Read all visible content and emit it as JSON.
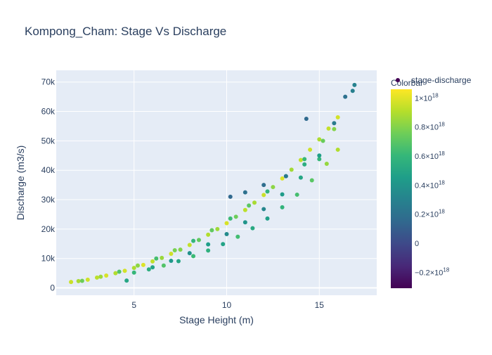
{
  "chart_data": {
    "type": "scatter",
    "title": "Kompong_Cham: Stage Vs Discharge",
    "xlabel": "Stage Height (m)",
    "ylabel": "Discharge (m3/s)",
    "xlim": [
      0.8,
      18.1
    ],
    "ylim": [
      -2500,
      74000
    ],
    "x_ticks": [
      5,
      10,
      15
    ],
    "x_tick_labels": [
      "5",
      "10",
      "15"
    ],
    "y_ticks": [
      0,
      10000,
      20000,
      30000,
      40000,
      50000,
      60000,
      70000
    ],
    "y_tick_labels": [
      "0",
      "10k",
      "20k",
      "30k",
      "40k",
      "50k",
      "60k",
      "70k"
    ],
    "grid": true,
    "legend": {
      "label": "stage-discharge",
      "placement": "top-right"
    },
    "colorscale": "Viridis",
    "colorbar": {
      "title": "Colorbar",
      "range": [
        -3.1e+17,
        1.06e+18
      ],
      "ticks": [
        -2e+17,
        0,
        2e+17,
        4e+17,
        6e+17,
        8e+17,
        1e+18
      ],
      "tick_labels": [
        {
          "mant": "−0.2×10",
          "exp": "18"
        },
        {
          "mant": "0",
          "exp": ""
        },
        {
          "mant": "0.2×10",
          "exp": "18"
        },
        {
          "mant": "0.4×10",
          "exp": "18"
        },
        {
          "mant": "0.6×10",
          "exp": "18"
        },
        {
          "mant": "0.8×10",
          "exp": "18"
        },
        {
          "mant": "1×10",
          "exp": "18"
        }
      ]
    },
    "series": [
      {
        "x": [
          1.6,
          2.0,
          2.5,
          3.0,
          3.5,
          4.0,
          4.5,
          5.0,
          5.5,
          6.0,
          6.5,
          7.0,
          7.5,
          8.0,
          8.5,
          9.0,
          9.5,
          10.0,
          10.5,
          11.0,
          11.5,
          12.0,
          12.5,
          13.0,
          13.5,
          14.0,
          14.5,
          15.0,
          15.5,
          16.0,
          2.2,
          3.2,
          4.2,
          5.2,
          6.2,
          7.2,
          8.2,
          9.2,
          10.2,
          11.2,
          12.2,
          13.2,
          14.2,
          15.2,
          15.8,
          5.0,
          5.8,
          6.6,
          7.4,
          8.2,
          9.0,
          9.8,
          10.6,
          11.4,
          12.2,
          13.0,
          13.8,
          14.6,
          15.4,
          16.0,
          6.0,
          7.0,
          8.0,
          9.0,
          10.0,
          11.0,
          12.0,
          13.0,
          14.0,
          15.0,
          4.6,
          10.2,
          11.0,
          12.0,
          13.2,
          14.2,
          15.0,
          15.8,
          16.4,
          16.8,
          16.9,
          14.3
        ],
        "y": [
          2000,
          2300,
          2800,
          3500,
          4200,
          5000,
          5800,
          6800,
          7800,
          9000,
          10200,
          11600,
          13000,
          14600,
          16300,
          18100,
          20000,
          22000,
          24200,
          26500,
          29000,
          31600,
          34300,
          37200,
          40200,
          43500,
          47000,
          50500,
          54200,
          58000,
          2400,
          3800,
          5500,
          7600,
          10000,
          12800,
          16000,
          19600,
          23600,
          28000,
          32800,
          38000,
          43800,
          50000,
          54000,
          5200,
          6300,
          7600,
          9100,
          10800,
          12700,
          14900,
          17400,
          20300,
          23600,
          27400,
          31700,
          36600,
          42200,
          47000,
          7000,
          9200,
          11800,
          14800,
          18300,
          22300,
          26800,
          31800,
          37500,
          43800,
          2500,
          31000,
          32500,
          35000,
          38000,
          42000,
          45000,
          56000,
          65000,
          67000,
          69000,
          57500
        ],
        "c": [
          9.5e+17,
          8.8e+17,
          9.6e+17,
          9.2e+17,
          9.8e+17,
          9e+17,
          9.7e+17,
          8.9e+17,
          9.9e+17,
          9.3e+17,
          8.5e+17,
          9.6e+17,
          8e+17,
          9.4e+17,
          7.2e+17,
          9e+17,
          8.6e+17,
          9.8e+17,
          7.5e+17,
          9.2e+17,
          8.8e+17,
          9.5e+17,
          8.2e+17,
          9.9e+17,
          8.7e+17,
          9.3e+17,
          9.6e+17,
          8.9e+17,
          9.4e+17,
          9.7e+17,
          7.5e+17,
          8.6e+17,
          6.8e+17,
          8.2e+17,
          6.5e+17,
          7.8e+17,
          6e+17,
          7.2e+17,
          6.2e+17,
          7e+17,
          5.8e+17,
          6.6e+17,
          6.1e+17,
          7.4e+17,
          8e+17,
          6e+17,
          5.5e+17,
          6.8e+17,
          5e+17,
          6.2e+17,
          5.6e+17,
          4.8e+17,
          6.4e+17,
          5.2e+17,
          4.6e+17,
          5.8e+17,
          6.5e+17,
          7e+17,
          8.4e+17,
          9e+17,
          4.8e+17,
          4.2e+17,
          3.8e+17,
          4.5e+17,
          3.5e+17,
          4e+17,
          3.2e+17,
          4.4e+17,
          5e+17,
          6e+17,
          5e+17,
          1.5e+17,
          2e+17,
          1.8e+17,
          2.4e+17,
          5.4e+17,
          4.6e+17,
          2.6e+17,
          2e+17,
          2.8e+17,
          3e+17,
          1.6e+17
        ]
      }
    ]
  }
}
